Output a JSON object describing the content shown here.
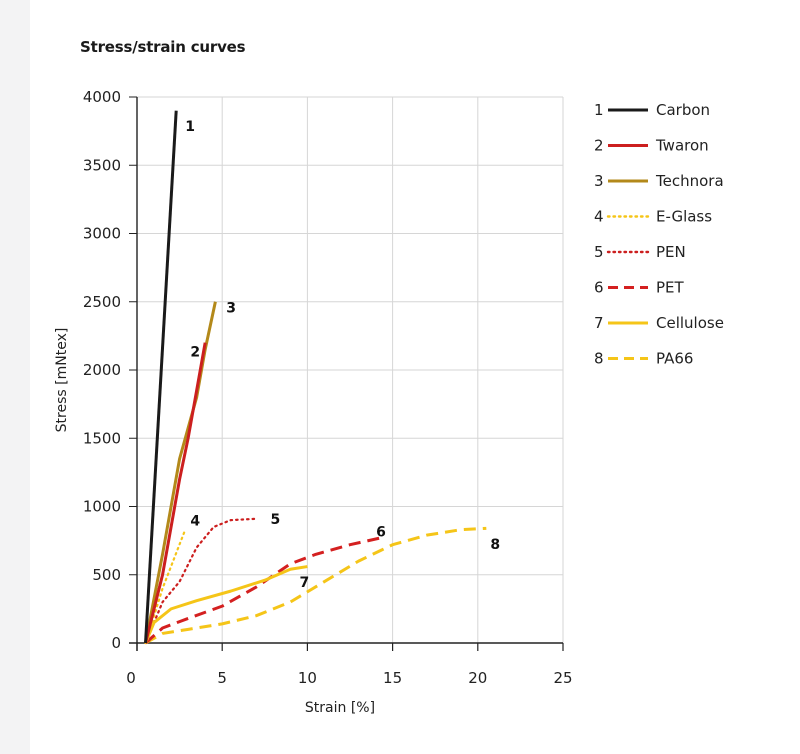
{
  "chart_data": {
    "type": "line",
    "title": "Stress/strain curves",
    "xlabel": "Strain [%]",
    "ylabel": "Stress [mNtex]",
    "xlim": [
      0,
      25
    ],
    "ylim": [
      0,
      4000
    ],
    "xticks": [
      "0",
      "5",
      "10",
      "15",
      "20",
      "25"
    ],
    "yticks": [
      "0",
      "500",
      "1000",
      "1500",
      "2000",
      "2500",
      "3000",
      "3500",
      "4000"
    ],
    "grid": true,
    "legend_position": "right",
    "series": [
      {
        "id": "1",
        "name": "Carbon",
        "color": "#1a1a1a",
        "style": "solid",
        "x": [
          0.5,
          2.3
        ],
        "y": [
          0,
          3900
        ]
      },
      {
        "id": "2",
        "name": "Twaron",
        "color": "#cc1f1f",
        "style": "solid",
        "x": [
          0.5,
          1.5,
          2.5,
          3.0,
          3.5,
          4.0
        ],
        "y": [
          0,
          500,
          1200,
          1500,
          1850,
          2200
        ]
      },
      {
        "id": "3",
        "name": "Technora",
        "color": "#b3891a",
        "style": "solid",
        "x": [
          0.5,
          1.5,
          2.5,
          3.5,
          4.0,
          4.6
        ],
        "y": [
          0,
          650,
          1350,
          1800,
          2150,
          2500
        ]
      },
      {
        "id": "4",
        "name": "E-Glass",
        "color": "#f5c518",
        "style": "dotted",
        "x": [
          0.5,
          1.5,
          2.8
        ],
        "y": [
          0,
          400,
          820
        ]
      },
      {
        "id": "5",
        "name": "PEN",
        "color": "#cc1f1f",
        "style": "dotted",
        "x": [
          0.5,
          1.5,
          2.5,
          3.5,
          4.5,
          5.5,
          7.0
        ],
        "y": [
          0,
          300,
          450,
          700,
          850,
          900,
          910
        ]
      },
      {
        "id": "6",
        "name": "PET",
        "color": "#d42020",
        "style": "dashed",
        "x": [
          0.5,
          1.5,
          3.0,
          5.0,
          7.0,
          9.0,
          10.5,
          12.5,
          14.3
        ],
        "y": [
          0,
          110,
          180,
          270,
          410,
          580,
          650,
          720,
          770
        ]
      },
      {
        "id": "7",
        "name": "Cellulose",
        "color": "#f5c518",
        "style": "solid",
        "x": [
          0.5,
          1.0,
          2.0,
          3.5,
          5.5,
          7.5,
          9.0,
          10.0
        ],
        "y": [
          0,
          150,
          250,
          310,
          380,
          460,
          540,
          560
        ]
      },
      {
        "id": "8",
        "name": "PA66",
        "color": "#f5c518",
        "style": "dashed",
        "x": [
          0.5,
          1.5,
          3.0,
          5.0,
          7.0,
          9.0,
          11.0,
          13.0,
          15.0,
          17.0,
          19.0,
          20.5
        ],
        "y": [
          0,
          70,
          100,
          140,
          200,
          300,
          450,
          600,
          720,
          790,
          830,
          840
        ]
      }
    ],
    "curve_labels": [
      {
        "text": "1",
        "x": 2.6,
        "y": 3750
      },
      {
        "text": "2",
        "x": 2.9,
        "y": 2100
      },
      {
        "text": "3",
        "x": 5.0,
        "y": 2420
      },
      {
        "text": "4",
        "x": 2.9,
        "y": 860
      },
      {
        "text": "5",
        "x": 7.6,
        "y": 870
      },
      {
        "text": "6",
        "x": 13.8,
        "y": 780
      },
      {
        "text": "7",
        "x": 9.3,
        "y": 410
      },
      {
        "text": "8",
        "x": 20.5,
        "y": 690
      }
    ]
  }
}
